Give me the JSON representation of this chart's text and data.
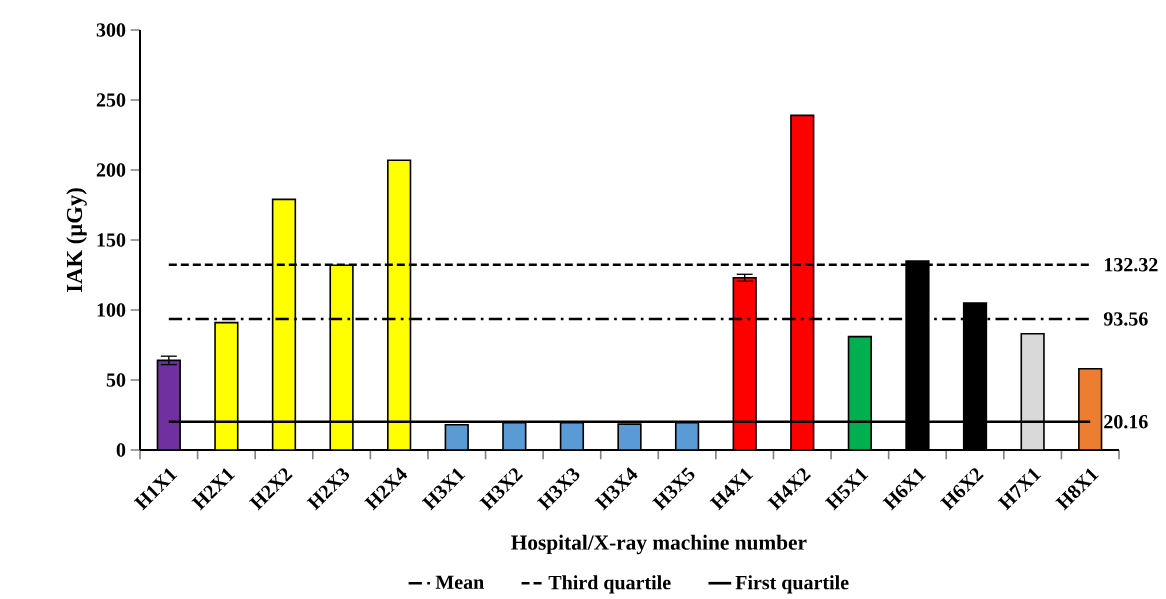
{
  "chart_data": {
    "type": "bar",
    "xlabel": "Hospital/X-ray machine   number",
    "ylabel": "IAK (µGy)",
    "categories": [
      "H1X1",
      "H2X1",
      "H2X2",
      "H2X3",
      "H2X4",
      "H3X1",
      "H3X2",
      "H3X3",
      "H3X4",
      "H3X5",
      "H4X1",
      "H4X2",
      "H5X1",
      "H6X1",
      "H6X2",
      "H7X1",
      "H8X1"
    ],
    "values": [
      64,
      91,
      179,
      132,
      207,
      18,
      19.5,
      19.5,
      18.5,
      19.5,
      123,
      239,
      81,
      135,
      105,
      83,
      58
    ],
    "errors": [
      3,
      null,
      null,
      null,
      null,
      null,
      null,
      null,
      null,
      null,
      2.5,
      null,
      null,
      null,
      null,
      null,
      null
    ],
    "colors": [
      "#7030a0",
      "#ffff00",
      "#ffff00",
      "#ffff00",
      "#ffff00",
      "#5b9bd5",
      "#5b9bd5",
      "#5b9bd5",
      "#5b9bd5",
      "#5b9bd5",
      "#ff0000",
      "#ff0000",
      "#00b050",
      "#000000",
      "#000000",
      "#d9d9d9",
      "#ed7d31"
    ],
    "ylim": [
      0,
      300
    ],
    "yticks": [
      0,
      50,
      100,
      150,
      200,
      250,
      300
    ],
    "ref_lines": [
      {
        "axis": "y",
        "value": 93.56,
        "label": "Mean",
        "line_style": "dashdot",
        "color": "#000000"
      },
      {
        "axis": "y",
        "value": 132.32,
        "label": "Third quartile",
        "line_style": "dashed",
        "color": "#000000"
      },
      {
        "axis": "y",
        "value": 20.16,
        "label": "First quartile",
        "line_style": "solid",
        "color": "#000000"
      }
    ],
    "annotations": [
      "93.56",
      "132.32",
      "20.16"
    ],
    "legend": "bottom",
    "grid": false
  }
}
